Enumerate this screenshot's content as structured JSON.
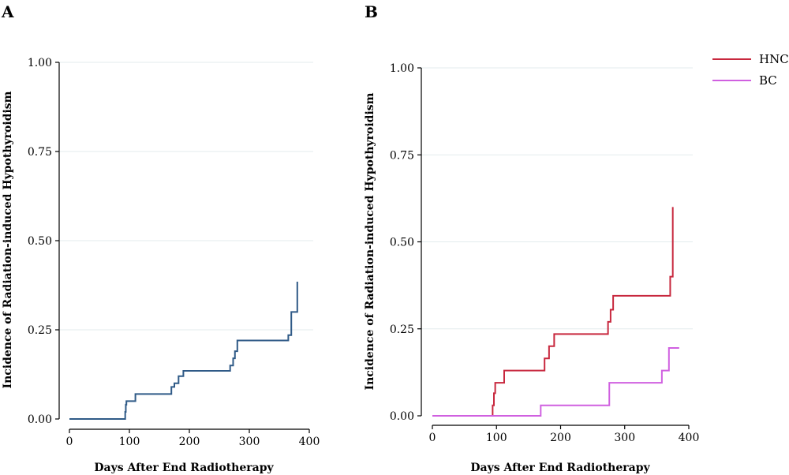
{
  "colors": {
    "panel_a_line": "#2f5a87",
    "hnc": "#c8283e",
    "bc": "#d060e0",
    "grid": "#e3ebee"
  },
  "chart_data": [
    {
      "panel": "A",
      "type": "line",
      "step": true,
      "xlabel": "Days After End Radiotherapy",
      "ylabel": "Incidence of Radiation-induced Hypothyroidism",
      "xlim": [
        0,
        400
      ],
      "ylim": [
        0,
        1
      ],
      "xticks": [
        "0",
        "100",
        "200",
        "300",
        "400"
      ],
      "yticks": [
        "0.00",
        "0.25",
        "0.50",
        "0.75",
        "1.00"
      ],
      "grid": "horizontal",
      "series": [
        {
          "x": [
            0,
            92,
            93,
            94,
            95,
            110,
            167,
            170,
            175,
            182,
            190,
            264,
            268,
            273,
            276,
            280,
            347,
            365,
            370,
            380
          ],
          "y": [
            0.0,
            0.0,
            0.02,
            0.04,
            0.05,
            0.07,
            0.07,
            0.09,
            0.1,
            0.12,
            0.135,
            0.135,
            0.15,
            0.17,
            0.19,
            0.22,
            0.22,
            0.235,
            0.3,
            0.385
          ]
        }
      ]
    },
    {
      "panel": "B",
      "type": "line",
      "step": true,
      "xlabel": "Days After End Radiotherapy",
      "ylabel": "Incidence of Radiation-induced Hypothyroidism",
      "xlim": [
        0,
        400
      ],
      "ylim": [
        0,
        1
      ],
      "xticks": [
        "0",
        "100",
        "200",
        "300",
        "400"
      ],
      "yticks": [
        "0.00",
        "0.25",
        "0.50",
        "0.75",
        "1.00"
      ],
      "grid": "horizontal",
      "legend_position": "top-right",
      "series": [
        {
          "name": "HNC",
          "x": [
            0,
            92,
            94,
            96,
            98,
            112,
            170,
            175,
            182,
            190,
            260,
            274,
            278,
            282,
            366,
            371,
            375
          ],
          "y": [
            0.0,
            0.0,
            0.03,
            0.065,
            0.095,
            0.13,
            0.13,
            0.165,
            0.2,
            0.235,
            0.235,
            0.27,
            0.305,
            0.345,
            0.345,
            0.4,
            0.6
          ]
        },
        {
          "name": "BC",
          "x": [
            0,
            168,
            169,
            274,
            276,
            350,
            358,
            366,
            369,
            385
          ],
          "y": [
            0.0,
            0.0,
            0.03,
            0.03,
            0.095,
            0.095,
            0.13,
            0.13,
            0.195,
            0.195
          ]
        }
      ]
    }
  ]
}
